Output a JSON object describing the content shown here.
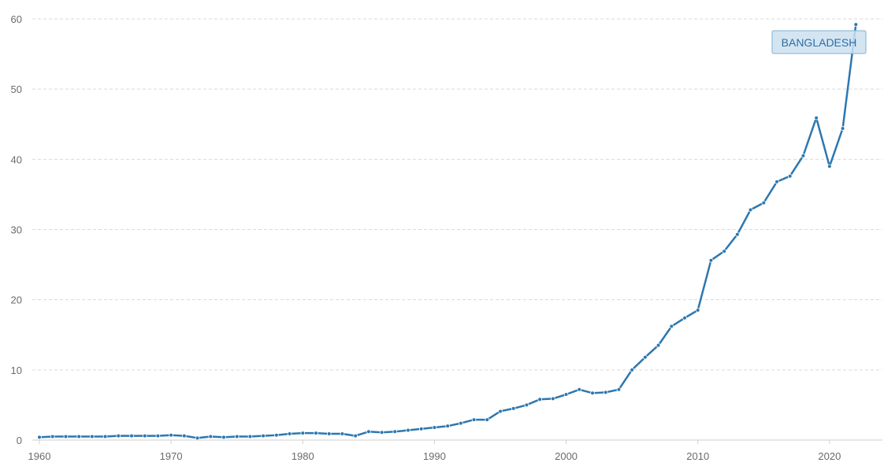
{
  "chart_data": {
    "type": "line",
    "title": "",
    "xlabel": "",
    "ylabel": "",
    "xlim": [
      1960,
      2023
    ],
    "ylim": [
      0,
      60
    ],
    "x_ticks": [
      1960,
      1970,
      1980,
      1990,
      2000,
      2010,
      2020
    ],
    "y_ticks": [
      0,
      10,
      20,
      30,
      40,
      50,
      60
    ],
    "grid": true,
    "legend": "none",
    "series": [
      {
        "name": "BANGLADESH",
        "color": "#2c77b0",
        "x": [
          1960,
          1961,
          1962,
          1963,
          1964,
          1965,
          1966,
          1967,
          1968,
          1969,
          1970,
          1971,
          1972,
          1973,
          1974,
          1975,
          1976,
          1977,
          1978,
          1979,
          1980,
          1981,
          1982,
          1983,
          1984,
          1985,
          1986,
          1987,
          1988,
          1989,
          1990,
          1991,
          1992,
          1993,
          1994,
          1995,
          1996,
          1997,
          1998,
          1999,
          2000,
          2001,
          2002,
          2003,
          2004,
          2005,
          2006,
          2007,
          2008,
          2009,
          2010,
          2011,
          2012,
          2013,
          2014,
          2015,
          2016,
          2017,
          2018,
          2019,
          2020,
          2021,
          2022
        ],
        "values": [
          0.4,
          0.5,
          0.5,
          0.5,
          0.5,
          0.5,
          0.6,
          0.6,
          0.6,
          0.6,
          0.7,
          0.6,
          0.3,
          0.5,
          0.4,
          0.5,
          0.5,
          0.6,
          0.7,
          0.9,
          1.0,
          1.0,
          0.9,
          0.9,
          0.6,
          1.2,
          1.1,
          1.2,
          1.4,
          1.6,
          1.8,
          2.0,
          2.4,
          2.9,
          2.9,
          4.1,
          4.5,
          5.0,
          5.8,
          5.9,
          6.5,
          7.2,
          6.7,
          6.8,
          7.2,
          10.0,
          11.8,
          13.5,
          16.2,
          17.4,
          18.5,
          25.6,
          26.9,
          29.3,
          32.8,
          33.8,
          36.8,
          37.6,
          40.5,
          45.9,
          39.0,
          44.4,
          59.2
        ]
      }
    ]
  }
}
